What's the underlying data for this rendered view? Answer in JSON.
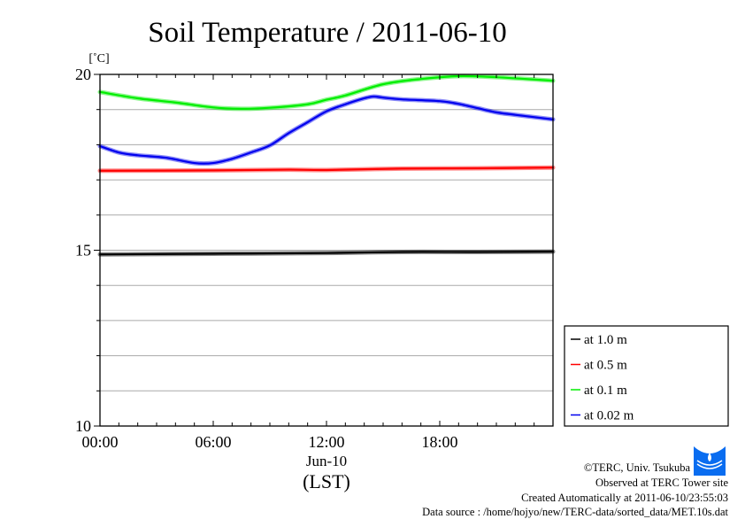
{
  "chart_data": {
    "type": "line",
    "title": "Soil Temperature / 2011-06-10",
    "ylabel": "[˚C]",
    "xlabel": "(LST)",
    "date_label": "Jun-10",
    "ylim": [
      10,
      20
    ],
    "yticks": [
      10,
      15,
      20
    ],
    "xlim_hours": [
      0,
      24
    ],
    "xticks": [
      {
        "h": 0,
        "label": "00:00"
      },
      {
        "h": 6,
        "label": "06:00"
      },
      {
        "h": 12,
        "label": "12:00"
      },
      {
        "h": 18,
        "label": "18:00"
      }
    ],
    "grid": true,
    "legend_position": "bottom-right-outside",
    "series": [
      {
        "name": "at 1.0 m",
        "color": "#000000",
        "x": [
          0,
          6,
          12,
          16,
          20,
          24
        ],
        "y": [
          14.88,
          14.9,
          14.92,
          14.95,
          14.95,
          14.96
        ]
      },
      {
        "name": "at 0.5 m",
        "color": "#ff0000",
        "x": [
          0,
          6,
          10,
          12,
          16,
          20,
          24
        ],
        "y": [
          17.26,
          17.27,
          17.29,
          17.28,
          17.32,
          17.33,
          17.35
        ]
      },
      {
        "name": "at 0.1 m",
        "color": "#00ee00",
        "x": [
          0,
          2,
          4,
          6,
          7.5,
          9,
          11,
          12,
          13,
          15,
          17,
          19,
          21,
          24
        ],
        "y": [
          19.5,
          19.32,
          19.2,
          19.06,
          19.02,
          19.05,
          19.15,
          19.28,
          19.4,
          19.72,
          19.87,
          19.95,
          19.92,
          19.82
        ]
      },
      {
        "name": "at 0.02 m",
        "color": "#0000ee",
        "x": [
          0,
          1,
          2,
          3.5,
          5,
          6,
          7,
          8,
          9,
          10,
          11,
          12,
          13,
          14,
          14.5,
          15,
          16,
          18,
          19,
          20,
          21,
          22,
          24
        ],
        "y": [
          17.96,
          17.78,
          17.7,
          17.63,
          17.48,
          17.48,
          17.6,
          17.78,
          17.98,
          18.33,
          18.64,
          18.95,
          19.15,
          19.32,
          19.37,
          19.34,
          19.29,
          19.24,
          19.16,
          19.04,
          18.92,
          18.85,
          18.72
        ]
      }
    ]
  },
  "footer": {
    "copyright": "©TERC, Univ. Tsukuba",
    "site": "Observed at TERC Tower site",
    "created": "Created Automatically at 2011-06-10/23:55:03",
    "source": "Data source : /home/hojyo/new/TERC-data/sorted_data/MET.10s.dat",
    "logo_text": "TERC"
  }
}
